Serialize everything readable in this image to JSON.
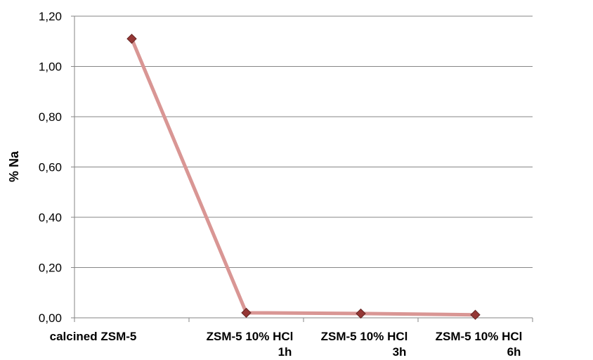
{
  "chart_data": {
    "type": "line",
    "title": "",
    "xlabel": "",
    "ylabel": "% Na",
    "categories": [
      [
        "calcined ZSM-5"
      ],
      [
        "ZSM-5 10% HCl",
        "1h"
      ],
      [
        "ZSM-5 10% HCl",
        "3h"
      ],
      [
        "ZSM-5 10% HCl",
        "6h"
      ]
    ],
    "series": [
      {
        "values": [
          1.11,
          0.02,
          0.017,
          0.012
        ]
      }
    ],
    "ylim": [
      0,
      1.2
    ],
    "yticks": [
      "0,00",
      "0,20",
      "0,40",
      "0,60",
      "0,80",
      "1,00",
      "1,20"
    ],
    "grid": true,
    "legend": "none",
    "colors": {
      "line": "#d99694",
      "marker_fill": "#953735",
      "marker_stroke": "#632523",
      "grid": "#868686",
      "axis": "#868686"
    }
  }
}
